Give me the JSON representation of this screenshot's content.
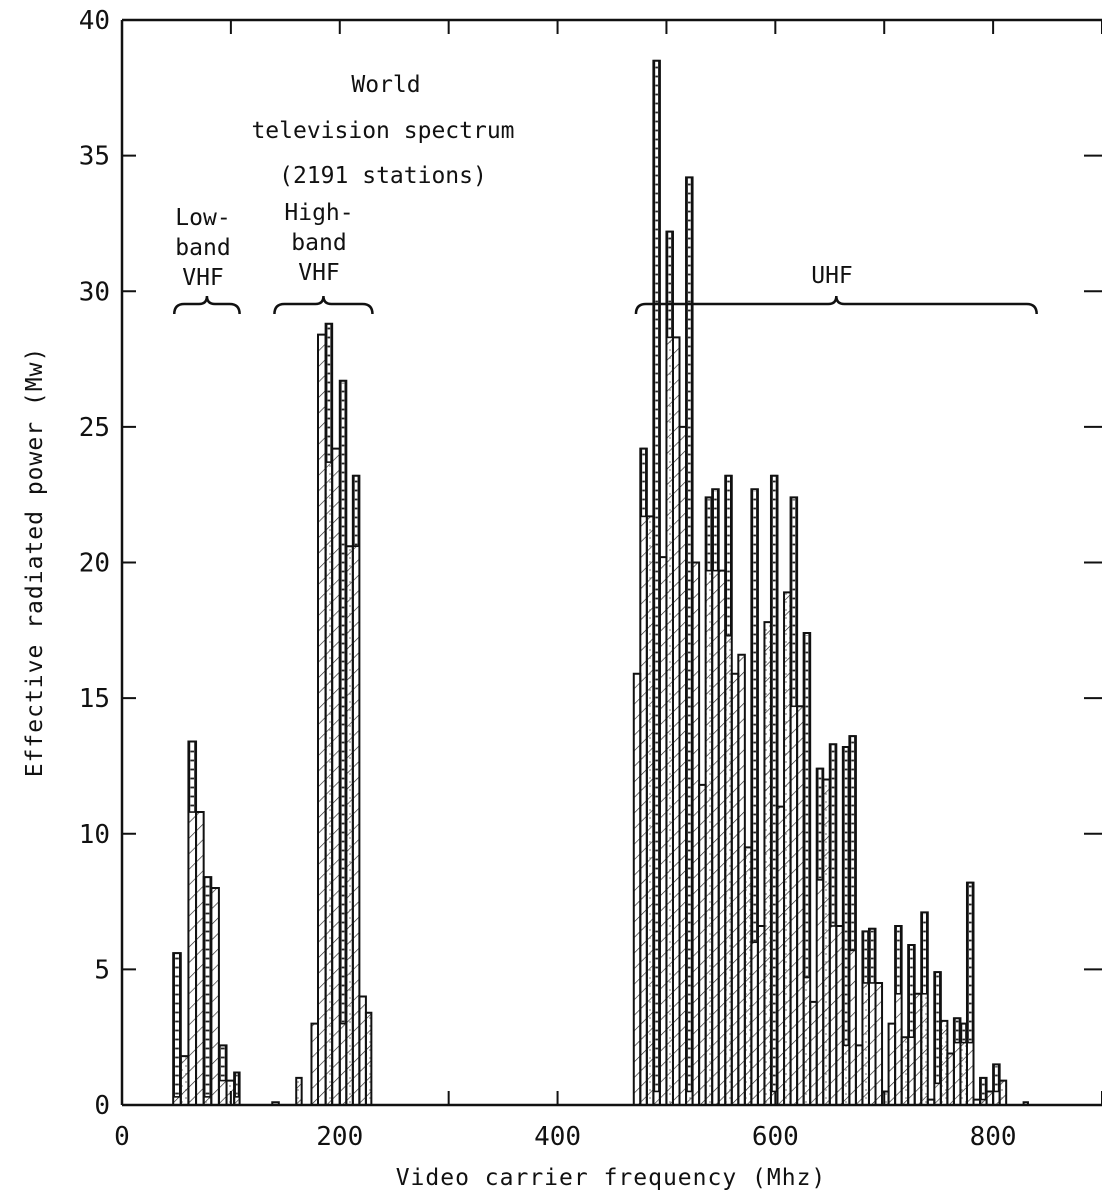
{
  "chart_data": {
    "type": "bar",
    "title": "",
    "xlabel": "Video carrier frequency (Mhz)",
    "ylabel": "Effective radiated power (Mw)",
    "xlim": [
      0,
      900
    ],
    "ylim": [
      0,
      40
    ],
    "x_ticks": [
      0,
      200,
      400,
      600,
      800
    ],
    "y_ticks": [
      0,
      5,
      10,
      15,
      20,
      25,
      30,
      35,
      40
    ],
    "x_tick_labels": [
      "0",
      "200",
      "400",
      "600",
      "800"
    ],
    "y_tick_labels": [
      "0",
      "5",
      "10",
      "15",
      "20",
      "25",
      "30",
      "35",
      "40"
    ],
    "grid": false,
    "annotations": [
      {
        "id": "title",
        "lines": [
          "World",
          "television spectrum",
          "(2191 stations)"
        ]
      },
      {
        "id": "low-vhf",
        "lines": [
          "Low-",
          "band",
          "VHF"
        ],
        "band": [
          48,
          108
        ]
      },
      {
        "id": "high-vhf",
        "lines": [
          "High-",
          "band",
          "VHF"
        ],
        "band": [
          140,
          230
        ]
      },
      {
        "id": "uhf",
        "lines": [
          "UHF"
        ],
        "band": [
          472,
          840
        ]
      }
    ],
    "series": [
      {
        "name": "",
        "bins": [
          {
            "x0": 47,
            "x1": 54,
            "y": 5.6,
            "base": 0.3
          },
          {
            "x0": 54,
            "x1": 61,
            "y": 1.8
          },
          {
            "x0": 61,
            "x1": 68,
            "y": 13.4,
            "base": 10.8
          },
          {
            "x0": 68,
            "x1": 75,
            "y": 10.8
          },
          {
            "x0": 75,
            "x1": 82,
            "y": 8.4,
            "base": 0.3
          },
          {
            "x0": 82,
            "x1": 89,
            "y": 8.0
          },
          {
            "x0": 89,
            "x1": 96,
            "y": 2.2,
            "base": 0.9
          },
          {
            "x0": 96,
            "x1": 103,
            "y": 0.9
          },
          {
            "x0": 103,
            "x1": 108,
            "y": 1.2,
            "base": 0.3
          },
          {
            "x0": 138,
            "x1": 144,
            "y": 0.1
          },
          {
            "x0": 160,
            "x1": 165,
            "y": 1.0
          },
          {
            "x0": 174,
            "x1": 180,
            "y": 3.0
          },
          {
            "x0": 180,
            "x1": 187,
            "y": 28.4
          },
          {
            "x0": 187,
            "x1": 193,
            "y": 28.8,
            "base": 23.7
          },
          {
            "x0": 193,
            "x1": 200,
            "y": 24.2
          },
          {
            "x0": 200,
            "x1": 206,
            "y": 26.7,
            "base": 3.0
          },
          {
            "x0": 206,
            "x1": 212,
            "y": 20.6
          },
          {
            "x0": 212,
            "x1": 218,
            "y": 23.2,
            "base": 20.6
          },
          {
            "x0": 218,
            "x1": 224,
            "y": 4.0
          },
          {
            "x0": 224,
            "x1": 229,
            "y": 3.4
          },
          {
            "x0": 470,
            "x1": 476,
            "y": 15.9
          },
          {
            "x0": 476,
            "x1": 482,
            "y": 24.2,
            "base": 21.7
          },
          {
            "x0": 482,
            "x1": 488,
            "y": 21.7
          },
          {
            "x0": 488,
            "x1": 494,
            "y": 38.5,
            "base": 0.5
          },
          {
            "x0": 494,
            "x1": 500,
            "y": 20.2
          },
          {
            "x0": 500,
            "x1": 506,
            "y": 32.2,
            "base": 28.3
          },
          {
            "x0": 506,
            "x1": 512,
            "y": 28.3
          },
          {
            "x0": 512,
            "x1": 518,
            "y": 25.0
          },
          {
            "x0": 518,
            "x1": 524,
            "y": 34.2,
            "base": 0.5
          },
          {
            "x0": 524,
            "x1": 530,
            "y": 20.0
          },
          {
            "x0": 530,
            "x1": 536,
            "y": 11.8
          },
          {
            "x0": 536,
            "x1": 542,
            "y": 22.4,
            "base": 19.7
          },
          {
            "x0": 542,
            "x1": 548,
            "y": 22.7,
            "base": 19.7
          },
          {
            "x0": 548,
            "x1": 554,
            "y": 19.7
          },
          {
            "x0": 554,
            "x1": 560,
            "y": 23.2,
            "base": 17.3
          },
          {
            "x0": 560,
            "x1": 566,
            "y": 15.9
          },
          {
            "x0": 566,
            "x1": 572,
            "y": 16.6
          },
          {
            "x0": 572,
            "x1": 578,
            "y": 9.5
          },
          {
            "x0": 578,
            "x1": 584,
            "y": 22.7,
            "base": 6.0
          },
          {
            "x0": 584,
            "x1": 590,
            "y": 6.6
          },
          {
            "x0": 590,
            "x1": 596,
            "y": 17.8
          },
          {
            "x0": 596,
            "x1": 602,
            "y": 23.2,
            "base": 0.5
          },
          {
            "x0": 602,
            "x1": 608,
            "y": 11.0
          },
          {
            "x0": 608,
            "x1": 614,
            "y": 18.9
          },
          {
            "x0": 614,
            "x1": 620,
            "y": 22.4,
            "base": 14.7
          },
          {
            "x0": 620,
            "x1": 626,
            "y": 14.7
          },
          {
            "x0": 626,
            "x1": 632,
            "y": 17.4,
            "base": 4.7
          },
          {
            "x0": 632,
            "x1": 638,
            "y": 3.8
          },
          {
            "x0": 638,
            "x1": 644,
            "y": 12.4,
            "base": 8.3
          },
          {
            "x0": 644,
            "x1": 650,
            "y": 12.0
          },
          {
            "x0": 650,
            "x1": 656,
            "y": 13.3,
            "base": 6.6
          },
          {
            "x0": 656,
            "x1": 662,
            "y": 6.6
          },
          {
            "x0": 662,
            "x1": 668,
            "y": 13.2,
            "base": 2.2
          },
          {
            "x0": 668,
            "x1": 674,
            "y": 13.6,
            "base": 5.7
          },
          {
            "x0": 674,
            "x1": 680,
            "y": 2.2
          },
          {
            "x0": 680,
            "x1": 686,
            "y": 6.4,
            "base": 4.5
          },
          {
            "x0": 686,
            "x1": 692,
            "y": 6.5,
            "base": 4.5
          },
          {
            "x0": 692,
            "x1": 698,
            "y": 4.5
          },
          {
            "x0": 698,
            "x1": 704,
            "y": 0.5
          },
          {
            "x0": 704,
            "x1": 710,
            "y": 3.0
          },
          {
            "x0": 710,
            "x1": 716,
            "y": 6.6,
            "base": 4.1
          },
          {
            "x0": 716,
            "x1": 722,
            "y": 2.5
          },
          {
            "x0": 722,
            "x1": 728,
            "y": 5.9,
            "base": 2.5
          },
          {
            "x0": 728,
            "x1": 734,
            "y": 4.1
          },
          {
            "x0": 734,
            "x1": 740,
            "y": 7.1,
            "base": 4.1
          },
          {
            "x0": 740,
            "x1": 746,
            "y": 0.2
          },
          {
            "x0": 746,
            "x1": 752,
            "y": 4.9,
            "base": 0.8
          },
          {
            "x0": 752,
            "x1": 758,
            "y": 3.1
          },
          {
            "x0": 758,
            "x1": 764,
            "y": 1.9
          },
          {
            "x0": 764,
            "x1": 770,
            "y": 3.2,
            "base": 2.3
          },
          {
            "x0": 770,
            "x1": 776,
            "y": 3.0,
            "base": 2.3
          },
          {
            "x0": 776,
            "x1": 782,
            "y": 8.2,
            "base": 2.3
          },
          {
            "x0": 782,
            "x1": 788,
            "y": 0.2
          },
          {
            "x0": 788,
            "x1": 794,
            "y": 1.0,
            "base": 0.2
          },
          {
            "x0": 794,
            "x1": 800,
            "y": 0.5
          },
          {
            "x0": 800,
            "x1": 806,
            "y": 1.5,
            "base": 0.5
          },
          {
            "x0": 806,
            "x1": 812,
            "y": 0.9
          },
          {
            "x0": 828,
            "x1": 832,
            "y": 0.1
          }
        ]
      }
    ]
  }
}
